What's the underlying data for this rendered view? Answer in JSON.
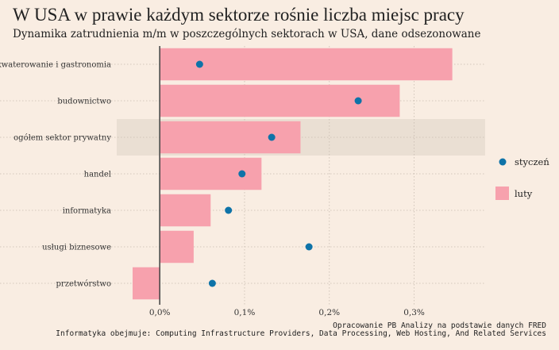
{
  "chart_data": {
    "type": "bar",
    "title": "W USA w prawie każdym sektorze rośnie liczba miejsc pracy",
    "subtitle": "Dynamika zatrudnienia m/m w poszczególnych sektorach w USA, dane odsezonowane",
    "categories": [
      "zakwaterowanie i gastronomia",
      "budownictwo",
      "ogółem sektor prywatny",
      "handel",
      "informatyka",
      "usługi biznesowe",
      "przetwórstwo"
    ],
    "highlighted_category": "ogółem sektor prywatny",
    "series": [
      {
        "name": "luty",
        "kind": "bar",
        "color": "#f7a1ad",
        "values": [
          0.345,
          0.283,
          0.166,
          0.12,
          0.06,
          0.04,
          -0.032
        ]
      },
      {
        "name": "styczeń",
        "kind": "point",
        "color": "#0e73a8",
        "values": [
          0.047,
          0.234,
          0.132,
          0.097,
          0.081,
          0.176,
          0.062
        ]
      }
    ],
    "xticks": [
      0,
      0.1,
      0.2,
      0.3
    ],
    "xtick_labels": [
      "0,0%",
      "0,1%",
      "0,2%",
      "0,3%"
    ],
    "xlim": [
      -0.032,
      0.365
    ],
    "legend_position": "right",
    "grid": true,
    "colors": {
      "background": "#f9ede2",
      "highlight": "#eadfd3",
      "grid": "#c8bcb0",
      "zero_line": "#4a4a4a"
    }
  },
  "footer": {
    "source": "Opracowanie PB Analizy na podstawie danych FRED",
    "note": "Informatyka obejmuje: Computing Infrastructure Providers, Data Processing, Web Hosting, And Related Services"
  }
}
